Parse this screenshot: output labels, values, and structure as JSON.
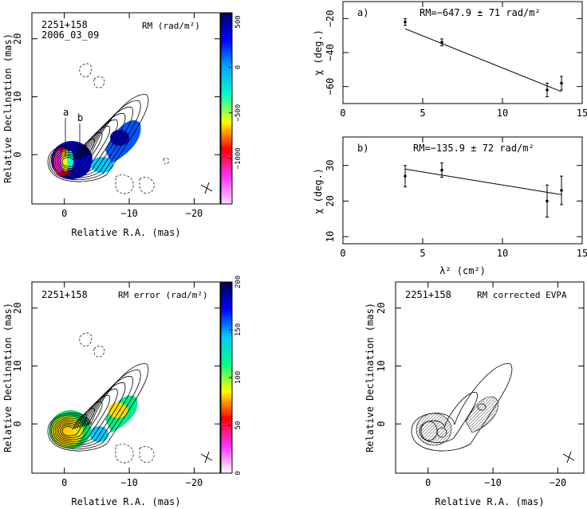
{
  "chart_data": [
    {
      "type": "heatmap",
      "id": "rm_map",
      "source_label": "2251+158",
      "date_label": "2006_03_09",
      "map_label": "RM (rad/m²)",
      "component_labels": [
        "a",
        "b"
      ],
      "xlabel": "Relative R.A. (mas)",
      "ylabel": "Relative Declination (mas)",
      "xlim": [
        5,
        -24
      ],
      "ylim": [
        -8.5,
        24.5
      ],
      "x_ticks": [
        0,
        -10,
        -20
      ],
      "y_ticks": [
        0,
        10,
        20
      ],
      "colorbar": {
        "range": [
          -1500,
          600
        ],
        "ticks": [
          500,
          0,
          -500,
          -1000
        ],
        "colors": [
          "#ffd6ff",
          "#ff33ff",
          "#ff0000",
          "#ffff00",
          "#00ffcc",
          "#00aaff",
          "#0000ff",
          "#000066"
        ]
      }
    },
    {
      "type": "scatter",
      "id": "fit_a",
      "panel_label": "a)",
      "fit_label": "RM=−647.9 ± 71 rad/m²",
      "ylabel": "χ (deg.)",
      "xlim": [
        0,
        15
      ],
      "ylim": [
        -70,
        -10
      ],
      "x_ticks": [
        0,
        5,
        10,
        15
      ],
      "y_ticks": [
        -20,
        -40,
        -60
      ],
      "points": [
        {
          "x": 3.9,
          "y": -22,
          "err": 2
        },
        {
          "x": 6.2,
          "y": -34,
          "err": 2
        },
        {
          "x": 12.8,
          "y": -62,
          "err": 4
        },
        {
          "x": 13.7,
          "y": -58,
          "err": 4
        }
      ],
      "fit_line": {
        "x": [
          3.9,
          13.7
        ],
        "y": [
          -26,
          -63
        ]
      }
    },
    {
      "type": "scatter",
      "id": "fit_b",
      "panel_label": "b)",
      "fit_label": "RM=−135.9 ± 72 rad/m²",
      "ylabel": "χ (deg.)",
      "xlabel": "λ² (cm²)",
      "xlim": [
        0,
        15
      ],
      "ylim": [
        8,
        38
      ],
      "x_ticks": [
        0,
        5,
        10,
        15
      ],
      "y_ticks": [
        10,
        20,
        30
      ],
      "points": [
        {
          "x": 3.9,
          "y": 27,
          "err": 3
        },
        {
          "x": 6.2,
          "y": 28.7,
          "err": 2
        },
        {
          "x": 12.8,
          "y": 20,
          "err": 4.5
        },
        {
          "x": 13.7,
          "y": 23,
          "err": 4
        }
      ],
      "fit_line": {
        "x": [
          3.9,
          13.7
        ],
        "y": [
          29,
          21.8
        ]
      }
    },
    {
      "type": "heatmap",
      "id": "rm_error_map",
      "source_label": "2251+158",
      "map_label": "RM error (rad/m²)",
      "xlabel": "Relative R.A. (mas)",
      "ylabel": "Relative Declination (mas)",
      "xlim": [
        5,
        -24
      ],
      "ylim": [
        -8.5,
        24.5
      ],
      "x_ticks": [
        0,
        -10,
        -20
      ],
      "y_ticks": [
        0,
        10,
        20
      ],
      "colorbar": {
        "range": [
          0,
          200
        ],
        "ticks": [
          200,
          150,
          100,
          50,
          0
        ],
        "colors": [
          "#ffffff",
          "#ff33ff",
          "#ff0000",
          "#ffff00",
          "#00ff88",
          "#00ccff",
          "#0000ff",
          "#000044"
        ]
      }
    },
    {
      "type": "heatmap",
      "id": "evpa_map",
      "source_label": "2251+158",
      "map_label": "RM corrected EVPA",
      "xlabel": "Relative R.A. (mas)",
      "ylabel": "Relative Declination (mas)",
      "xlim": [
        5,
        -24
      ],
      "ylim": [
        -8.5,
        24.5
      ],
      "x_ticks": [
        0,
        -10,
        -20
      ],
      "y_ticks": [
        0,
        10,
        20
      ]
    }
  ]
}
